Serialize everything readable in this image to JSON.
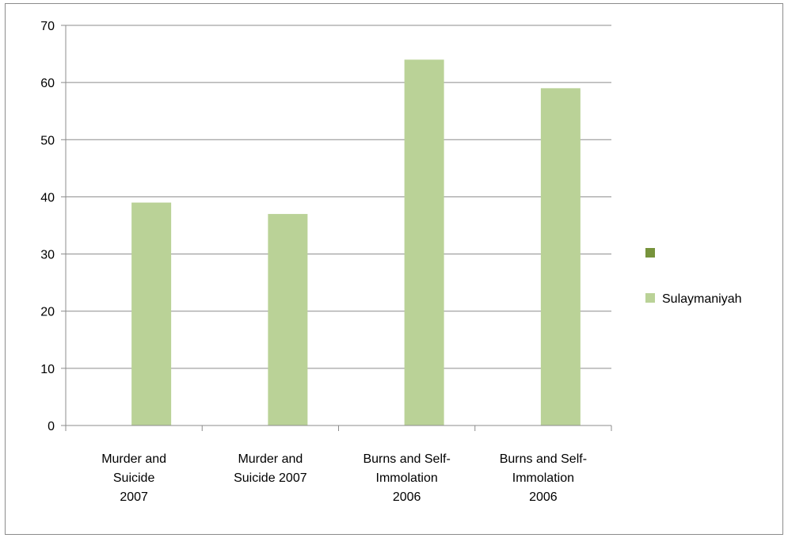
{
  "chart_data": {
    "type": "bar",
    "categories": [
      [
        "Murder and",
        "Suicide",
        "2007"
      ],
      [
        "Murder and",
        "Suicide 2007"
      ],
      [
        "Burns and Self-",
        "Immolation",
        "2006"
      ],
      [
        "Burns and Self-",
        "Immolation",
        "2006"
      ]
    ],
    "series": [
      {
        "name": "",
        "values": [
          0,
          0,
          0,
          0
        ],
        "color": "#77933c"
      },
      {
        "name": "Sulaymaniyah",
        "values": [
          39,
          37,
          64,
          59
        ],
        "color": "#bad297"
      }
    ],
    "ylim": [
      0,
      70
    ],
    "yticks": [
      0,
      10,
      20,
      30,
      40,
      50,
      60,
      70
    ],
    "grid": true,
    "legend_placement": "right",
    "gridline_color": "#8c8c8c"
  }
}
